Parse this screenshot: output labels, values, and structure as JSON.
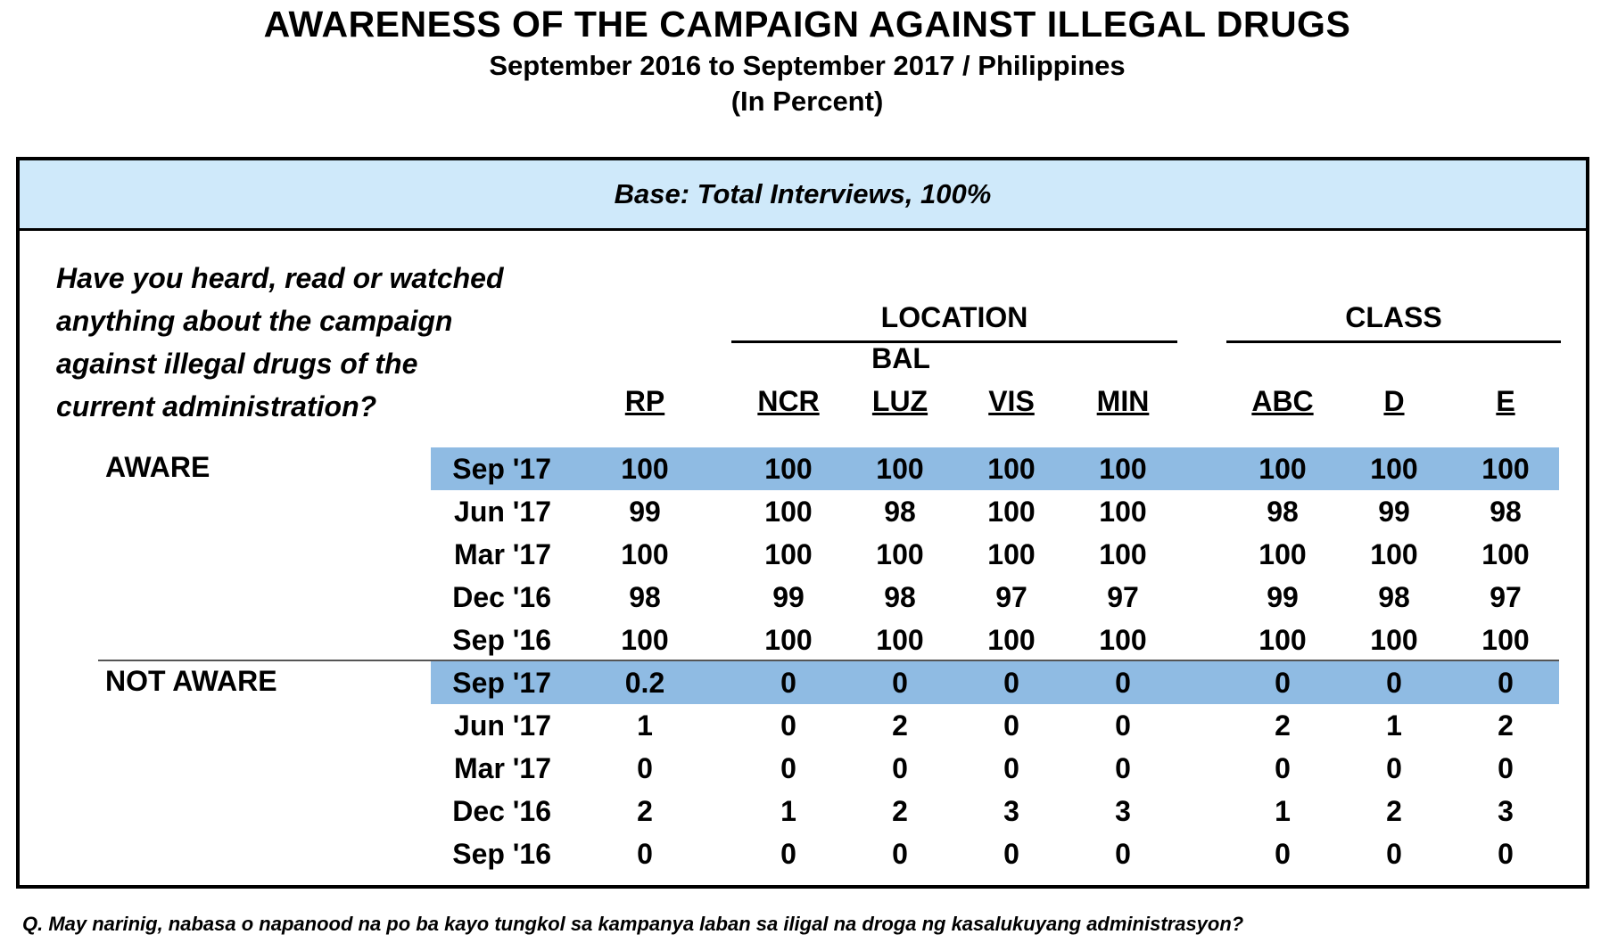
{
  "title": "AWARENESS OF THE CAMPAIGN AGAINST ILLEGAL DRUGS",
  "subtitle": "September 2016 to September 2017 / Philippines",
  "unit": "(In Percent)",
  "base": "Base: Total Interviews, 100%",
  "question_lines": [
    "Have you heard, read or watched",
    "anything about the campaign",
    "against illegal drugs of the",
    "current administration?"
  ],
  "groups": {
    "location": "LOCATION",
    "class": "CLASS"
  },
  "bal_prefix": "BAL",
  "columns": [
    "RP",
    "NCR",
    "LUZ",
    "VIS",
    "MIN",
    "ABC",
    "D",
    "E"
  ],
  "footnote": "Q.  May narinig, nabasa o napanood na po ba kayo tungkol sa kampanya laban sa iligal na droga ng kasalukuyang administrasyon?",
  "colors": {
    "base_band": "#cfe9fa",
    "highlight_row": "#8fbbe3"
  },
  "chart_data": {
    "type": "table",
    "title": "AWARENESS OF THE CAMPAIGN AGAINST ILLEGAL DRUGS",
    "columns": [
      "RP",
      "NCR",
      "BAL LUZ",
      "VIS",
      "MIN",
      "ABC",
      "D",
      "E"
    ],
    "sections": [
      {
        "label": "AWARE",
        "rows": [
          {
            "period": "Sep '17",
            "values": [
              "100",
              "100",
              "100",
              "100",
              "100",
              "100",
              "100",
              "100"
            ],
            "highlight": true
          },
          {
            "period": "Jun '17",
            "values": [
              "99",
              "100",
              "98",
              "100",
              "100",
              "98",
              "99",
              "98"
            ]
          },
          {
            "period": "Mar '17",
            "values": [
              "100",
              "100",
              "100",
              "100",
              "100",
              "100",
              "100",
              "100"
            ]
          },
          {
            "period": "Dec '16",
            "values": [
              "98",
              "99",
              "98",
              "97",
              "97",
              "99",
              "98",
              "97"
            ]
          },
          {
            "period": "Sep '16",
            "values": [
              "100",
              "100",
              "100",
              "100",
              "100",
              "100",
              "100",
              "100"
            ]
          }
        ]
      },
      {
        "label": "NOT AWARE",
        "rows": [
          {
            "period": "Sep '17",
            "values": [
              "0.2",
              "0",
              "0",
              "0",
              "0",
              "0",
              "0",
              "0"
            ],
            "highlight": true
          },
          {
            "period": "Jun '17",
            "values": [
              "1",
              "0",
              "2",
              "0",
              "0",
              "2",
              "1",
              "2"
            ]
          },
          {
            "period": "Mar '17",
            "values": [
              "0",
              "0",
              "0",
              "0",
              "0",
              "0",
              "0",
              "0"
            ]
          },
          {
            "period": "Dec '16",
            "values": [
              "2",
              "1",
              "2",
              "3",
              "3",
              "1",
              "2",
              "3"
            ]
          },
          {
            "period": "Sep '16",
            "values": [
              "0",
              "0",
              "0",
              "0",
              "0",
              "0",
              "0",
              "0"
            ]
          }
        ]
      }
    ]
  }
}
